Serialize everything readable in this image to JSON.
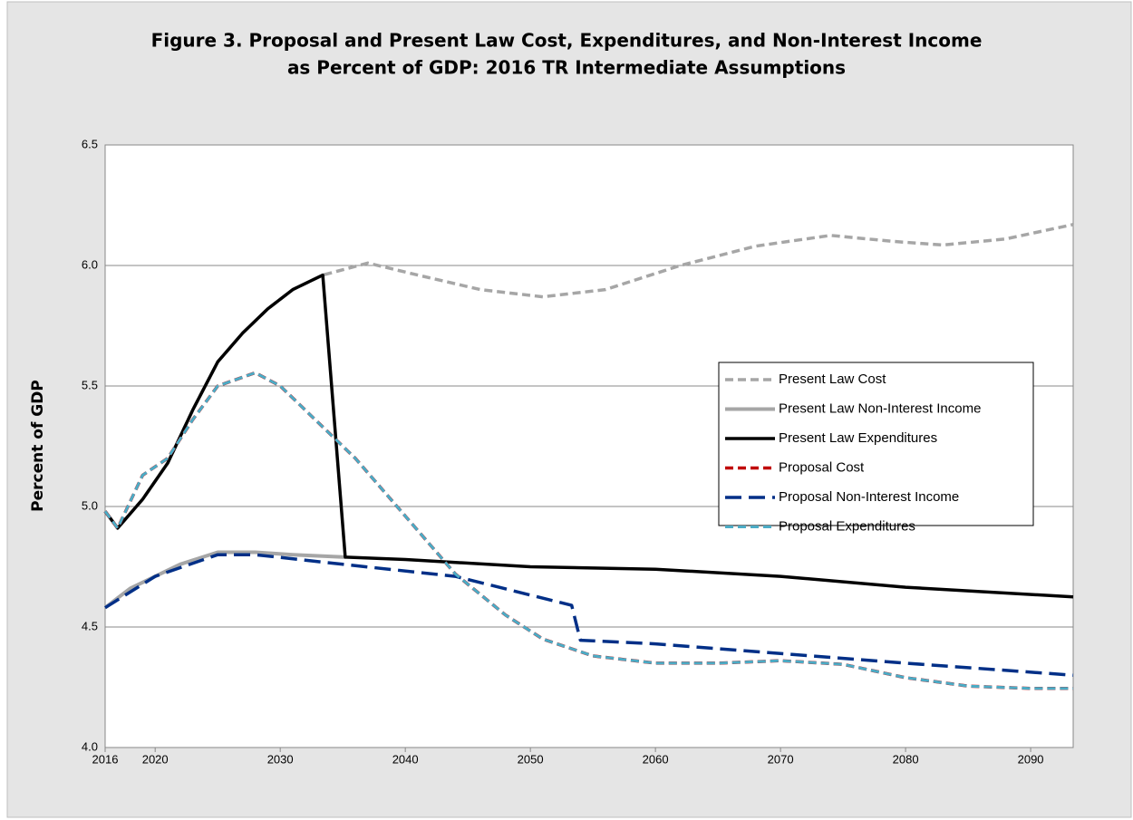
{
  "chart_data": {
    "type": "line",
    "title": [
      "Figure 3. Proposal and Present Law Cost, Expenditures, and Non-Interest Income",
      "as Percent of GDP: 2016 TR Intermediate Assumptions"
    ],
    "y_label": "Percent of GDP",
    "xlim": [
      2016,
      2093.4
    ],
    "xticks": [
      2016,
      2020,
      2030,
      2040,
      2050,
      2060,
      2070,
      2080,
      2090
    ],
    "ylim": [
      4.0,
      6.5
    ],
    "yticks": [
      {
        "value": 4.0,
        "label": "4.0"
      },
      4.5,
      {
        "value": 5.0,
        "label": "5.0"
      },
      5.5,
      {
        "value": 6.0,
        "label": "6.0"
      },
      6.5
    ],
    "grid": true,
    "legend": "right",
    "series": [
      {
        "name": "Present Law Cost",
        "color": "#a6a6a6",
        "dash": "dashed",
        "width": 3.5,
        "x": [
          2016,
          2017,
          2019,
          2021,
          2023,
          2025,
          2027,
          2029,
          2031,
          2033.4,
          2037,
          2041,
          2046,
          2051,
          2056,
          2062,
          2068,
          2074,
          2079,
          2083,
          2088,
          2093.4
        ],
        "values": [
          4.98,
          4.91,
          5.03,
          5.18,
          5.4,
          5.6,
          5.72,
          5.82,
          5.9,
          5.96,
          6.01,
          5.96,
          5.9,
          5.87,
          5.9,
          6.0,
          6.08,
          6.125,
          6.1,
          6.085,
          6.11,
          6.17
        ]
      },
      {
        "name": "Present Law Non-Interest Income",
        "color": "#a6a6a6",
        "dash": "solid",
        "width": 4,
        "x": [
          2016,
          2018,
          2020,
          2022,
          2025,
          2028,
          2031,
          2035.2
        ],
        "values": [
          4.58,
          4.66,
          4.71,
          4.76,
          4.81,
          4.81,
          4.8,
          4.79
        ]
      },
      {
        "name": "Present Law Expenditures",
        "color": "#000000",
        "dash": "solid",
        "width": 3.5,
        "x": [
          2016,
          2017,
          2019,
          2021,
          2023,
          2025,
          2027,
          2029,
          2031,
          2033.4,
          2035.2,
          2040,
          2050,
          2060,
          2070,
          2080,
          2093.4
        ],
        "values": [
          4.98,
          4.91,
          5.03,
          5.18,
          5.4,
          5.6,
          5.72,
          5.82,
          5.9,
          5.96,
          4.79,
          4.78,
          4.75,
          4.74,
          4.71,
          4.665,
          4.625
        ]
      },
      {
        "name": "Proposal Cost",
        "color": "#c00000",
        "dash": "dashed",
        "width": 3.5,
        "x": [
          2016,
          2017,
          2019,
          2021,
          2023,
          2025,
          2028,
          2030,
          2033,
          2036,
          2040,
          2044,
          2048,
          2051,
          2055,
          2060,
          2065,
          2070,
          2075,
          2080,
          2085,
          2090,
          2093.4
        ],
        "values": [
          4.98,
          4.91,
          5.13,
          5.2,
          5.36,
          5.5,
          5.555,
          5.5,
          5.35,
          5.2,
          4.96,
          4.72,
          4.55,
          4.45,
          4.38,
          4.35,
          4.35,
          4.36,
          4.345,
          4.29,
          4.255,
          4.245,
          4.245
        ]
      },
      {
        "name": "Proposal Non-Interest Income",
        "color": "#002f87",
        "dash": "long",
        "width": 3.5,
        "x": [
          2016,
          2020,
          2025,
          2028,
          2035,
          2044,
          2053.3,
          2054,
          2060,
          2070,
          2080,
          2093.4
        ],
        "values": [
          4.58,
          4.71,
          4.8,
          4.8,
          4.76,
          4.71,
          4.59,
          4.445,
          4.43,
          4.39,
          4.35,
          4.3
        ]
      },
      {
        "name": "Proposal Expenditures",
        "color": "#4bacc6",
        "dash": "dashed",
        "width": 3,
        "x": [
          2016,
          2017,
          2019,
          2021,
          2023,
          2025,
          2028,
          2030,
          2033,
          2036,
          2040,
          2044,
          2048,
          2051,
          2055,
          2060,
          2065,
          2070,
          2075,
          2080,
          2085,
          2090,
          2093.4
        ],
        "values": [
          4.98,
          4.91,
          5.13,
          5.2,
          5.36,
          5.5,
          5.555,
          5.5,
          5.35,
          5.2,
          4.96,
          4.72,
          4.55,
          4.45,
          4.38,
          4.35,
          4.35,
          4.36,
          4.345,
          4.29,
          4.255,
          4.245,
          4.245
        ]
      }
    ]
  }
}
